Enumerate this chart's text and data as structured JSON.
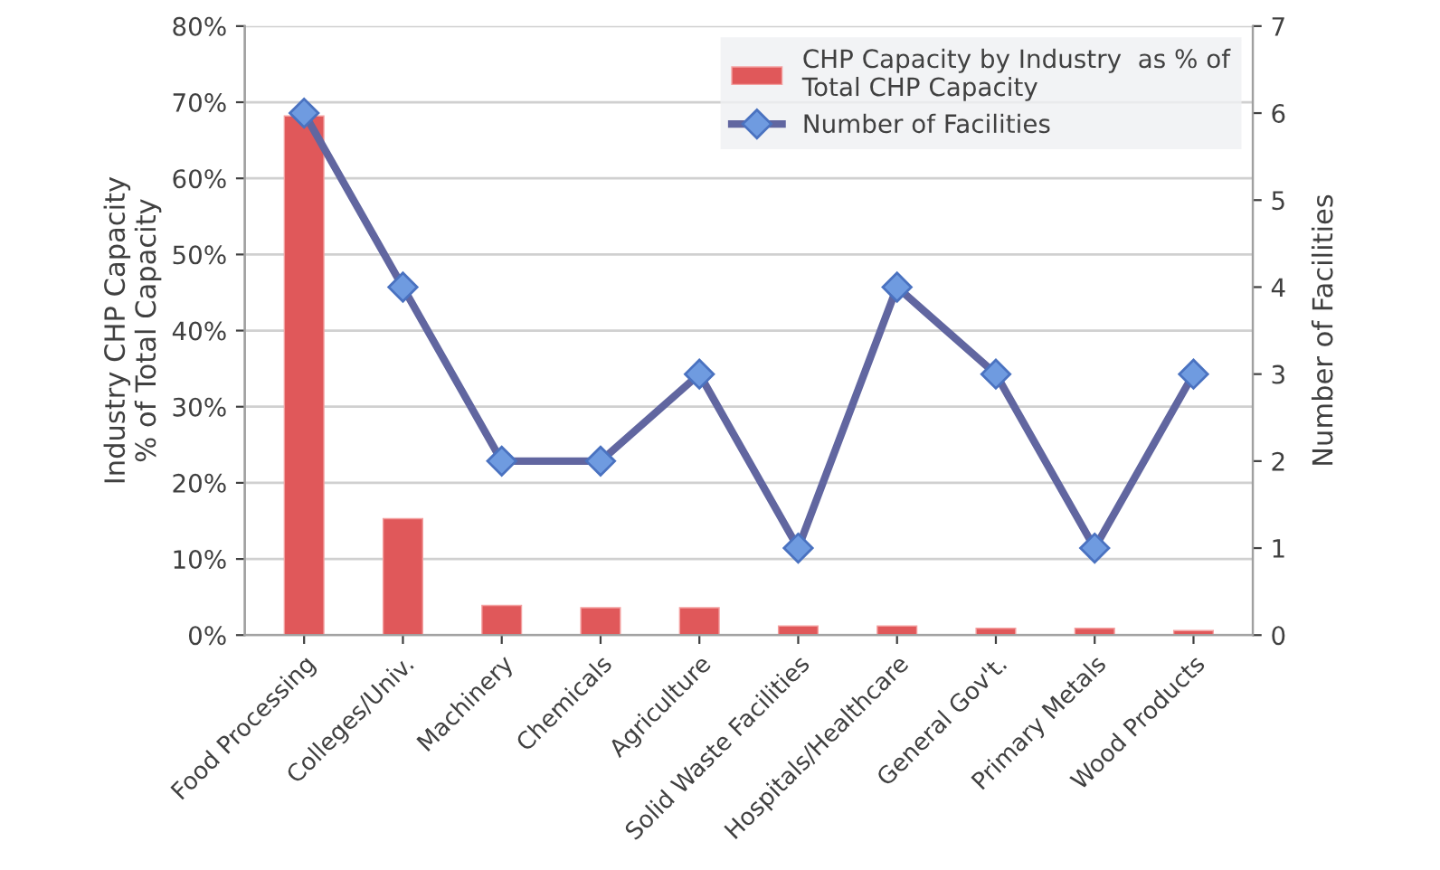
{
  "chart_data": {
    "type": "bar",
    "categories": [
      "Food Processing",
      "Colleges/Univ.",
      "Machinery",
      "Chemicals",
      "Agriculture",
      "Solid Waste Facilities",
      "Hospitals/Healthcare",
      "General Gov't.",
      "Primary Metals",
      "Wood Products"
    ],
    "series": [
      {
        "name": "CHP Capacity by Industry  as % of Total CHP Capacity",
        "color": "#e0585a",
        "values": [
          68.2,
          15.3,
          3.9,
          3.6,
          3.6,
          1.2,
          1.2,
          0.9,
          0.9,
          0.6
        ]
      },
      {
        "name": "Number of Facilities",
        "type": "line",
        "axis": "y2",
        "color": "#6166a0",
        "marker": "diamond",
        "values": [
          6,
          4,
          2,
          2,
          3,
          1,
          4,
          3,
          1,
          3
        ]
      }
    ],
    "ylabel": "Industry CHP Capacity\n% of Total Capacity",
    "y2label": "Number of Facilities",
    "ylim": [
      0,
      80
    ],
    "yticks": [
      {
        "value": 0,
        "label": "0%"
      },
      {
        "value": 10,
        "label": "10%"
      },
      {
        "value": 20,
        "label": "20%"
      },
      {
        "value": 30,
        "label": "30%"
      },
      {
        "value": 40,
        "label": "40%"
      },
      {
        "value": 50,
        "label": "50%"
      },
      {
        "value": 60,
        "label": "60%"
      },
      {
        "value": 70,
        "label": "70%"
      },
      {
        "value": 80,
        "label": "80%"
      }
    ],
    "y2lim": [
      0,
      7
    ],
    "y2ticks": [
      0,
      1,
      2,
      3,
      4,
      5,
      6,
      7
    ],
    "grid": "y",
    "legend": "top right"
  }
}
